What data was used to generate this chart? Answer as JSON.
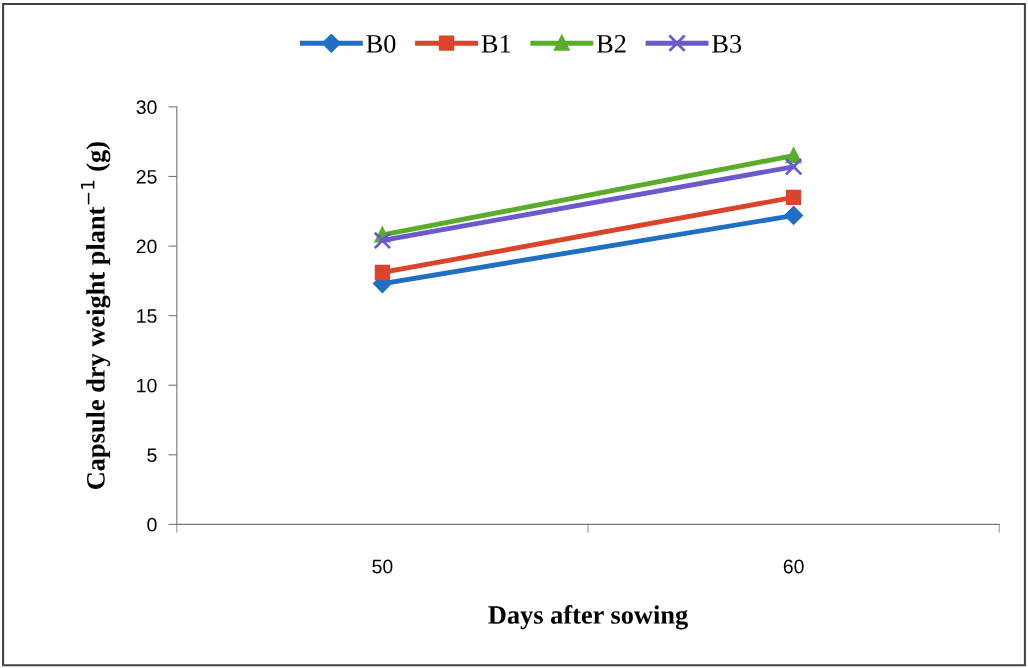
{
  "chart_data": {
    "type": "line",
    "xlabel": "Days after sowing",
    "ylabel": "Capsule dry weight plant$^{−1}$ (g)",
    "categories": [
      "50",
      "60"
    ],
    "series": [
      {
        "name": "B0",
        "color": "#1f6fc5",
        "marker": "diamond",
        "values": [
          17.3,
          22.2
        ]
      },
      {
        "name": "B1",
        "color": "#d9442b",
        "marker": "square",
        "values": [
          18.1,
          23.5
        ]
      },
      {
        "name": "B2",
        "color": "#5aad2a",
        "marker": "triangle",
        "values": [
          20.8,
          26.5
        ]
      },
      {
        "name": "B3",
        "color": "#6a5acd",
        "marker": "cross",
        "values": [
          20.4,
          25.7
        ]
      }
    ],
    "ylim": [
      0,
      30
    ],
    "yticks": [
      0,
      5,
      10,
      15,
      20,
      25,
      30
    ],
    "grid": false,
    "legend": "top",
    "line_style": "solid"
  }
}
